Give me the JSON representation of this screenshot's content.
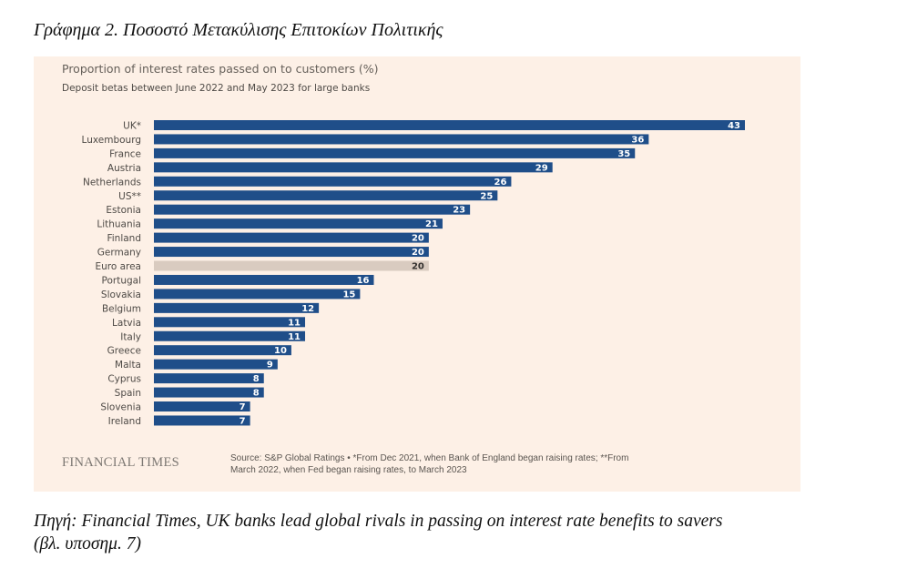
{
  "document": {
    "figure_title": "Γράφημα 2. Ποσοστό Μετακύλισης Επιτοκίων Πολιτικής",
    "caption_line1": "Πηγή: Financial Times, UK banks lead global rivals in passing on interest rate benefits to savers",
    "caption_line2": "(βλ. υποσημ. 7)"
  },
  "colors": {
    "panel_bg": "#fdf0e6",
    "bar": "#1f4e89",
    "bar_highlight": "#d9cbc0"
  },
  "footer": {
    "logo": "FINANCIAL TIMES",
    "source_line1": "Source: S&P Global Ratings • *From Dec 2021, when Bank of England began raising rates; **From",
    "source_line2": "March 2022, when Fed began raising rates, to March 2023"
  },
  "chart_data": {
    "type": "bar",
    "orientation": "horizontal",
    "title": "Proportion of interest rates passed on to customers (%)",
    "subtitle": "Deposit betas between June 2022 and May 2023 for large banks",
    "xlabel": "",
    "ylabel": "",
    "xlim": [
      0,
      43
    ],
    "grid": false,
    "legend": "none",
    "categories": [
      "UK*",
      "Luxembourg",
      "France",
      "Austria",
      "Netherlands",
      "US**",
      "Estonia",
      "Lithuania",
      "Finland",
      "Germany",
      "Euro area",
      "Portugal",
      "Slovakia",
      "Belgium",
      "Latvia",
      "Italy",
      "Greece",
      "Malta",
      "Cyprus",
      "Spain",
      "Slovenia",
      "Ireland"
    ],
    "values": [
      43,
      36,
      35,
      29,
      26,
      25,
      23,
      21,
      20,
      20,
      20,
      16,
      15,
      12,
      11,
      11,
      10,
      9,
      8,
      8,
      7,
      7
    ],
    "highlight": [
      "Euro area"
    ]
  }
}
